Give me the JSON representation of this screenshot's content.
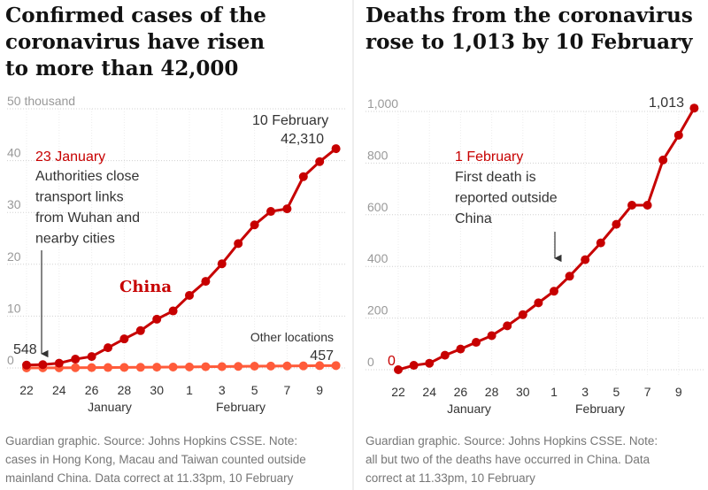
{
  "chart_data": [
    {
      "type": "line",
      "title": [
        "Confirmed cases of the",
        "coronavirus have risen",
        "to more than 42,000"
      ],
      "categories": [
        "22",
        null,
        "24",
        null,
        "26",
        null,
        "28",
        null,
        "30",
        null,
        "1",
        null,
        "3",
        null,
        "5",
        null,
        "7",
        null,
        "9",
        null
      ],
      "month_labels": [
        "January",
        "February"
      ],
      "series": [
        {
          "name": "China",
          "color": "#c70000",
          "values": [
            0.548,
            0.64,
            0.92,
            1.7,
            2.2,
            3.9,
            5.6,
            7.2,
            9.4,
            11,
            14,
            16.7,
            20.1,
            24,
            27.6,
            30.2,
            30.7,
            36.9,
            39.8,
            42.31
          ],
          "value_labels": [
            "548",
            null,
            null,
            null,
            null,
            null,
            null,
            null,
            null,
            null,
            null,
            null,
            null,
            null,
            null,
            null,
            null,
            null,
            null,
            "42,310"
          ]
        },
        {
          "name": "Other locations",
          "color": "#ff5b3a",
          "values": [
            0.01,
            0.02,
            0.03,
            0.04,
            0.06,
            0.08,
            0.1,
            0.12,
            0.15,
            0.17,
            0.19,
            0.24,
            0.26,
            0.3,
            0.34,
            0.36,
            0.38,
            0.4,
            0.44,
            0.457
          ],
          "value_labels": [
            null,
            null,
            null,
            null,
            null,
            null,
            null,
            null,
            null,
            null,
            null,
            null,
            null,
            null,
            null,
            null,
            null,
            null,
            null,
            "457"
          ]
        }
      ],
      "ylim": [
        0,
        50
      ],
      "yticks": [
        0,
        10,
        20,
        30,
        40,
        {
          "value": 50,
          "label": "50 thousand"
        }
      ],
      "grid": true,
      "annotations": [
        {
          "title": "23 January",
          "text": [
            "Authorities close",
            "transport links",
            "from Wuhan and",
            "nearby cities"
          ]
        },
        {
          "title": "10 February"
        }
      ],
      "note": [
        "Guardian graphic. Source: Johns Hopkins CSSE. Note:",
        "cases in Hong Kong, Macau and Taiwan counted outside",
        "mainland China. Data correct at 11.33pm, 10 February"
      ]
    },
    {
      "type": "line",
      "title": [
        "Deaths from the coronavirus",
        "rose to 1,013 by 10 February"
      ],
      "categories": [
        "22",
        null,
        "24",
        null,
        "26",
        null,
        "28",
        null,
        "30",
        null,
        "1",
        null,
        "3",
        null,
        "5",
        null,
        "7",
        null,
        "9",
        null
      ],
      "month_labels": [
        "January",
        "February"
      ],
      "series": [
        {
          "name": "Deaths",
          "color": "#c70000",
          "values": [
            0,
            17,
            25,
            56,
            80,
            106,
            132,
            170,
            213,
            259,
            304,
            362,
            426,
            491,
            563,
            637,
            637,
            812,
            908,
            1013
          ],
          "value_labels": [
            null,
            null,
            null,
            null,
            null,
            null,
            null,
            null,
            null,
            null,
            null,
            null,
            null,
            null,
            null,
            null,
            null,
            null,
            null,
            "1,013"
          ]
        }
      ],
      "ylim": [
        0,
        1000
      ],
      "yticks": [
        0,
        200,
        400,
        600,
        800,
        {
          "value": 1000,
          "label": "1,000"
        }
      ],
      "grid": true,
      "annotations": [
        {
          "title": "1 February",
          "text": [
            "First death is",
            "reported outside",
            "China"
          ]
        }
      ],
      "note": [
        "Guardian graphic. Source: Johns Hopkins CSSE. Note:",
        "all but two of the deaths have occurred in China. Data",
        "correct at 11.33pm, 10 February"
      ]
    }
  ]
}
